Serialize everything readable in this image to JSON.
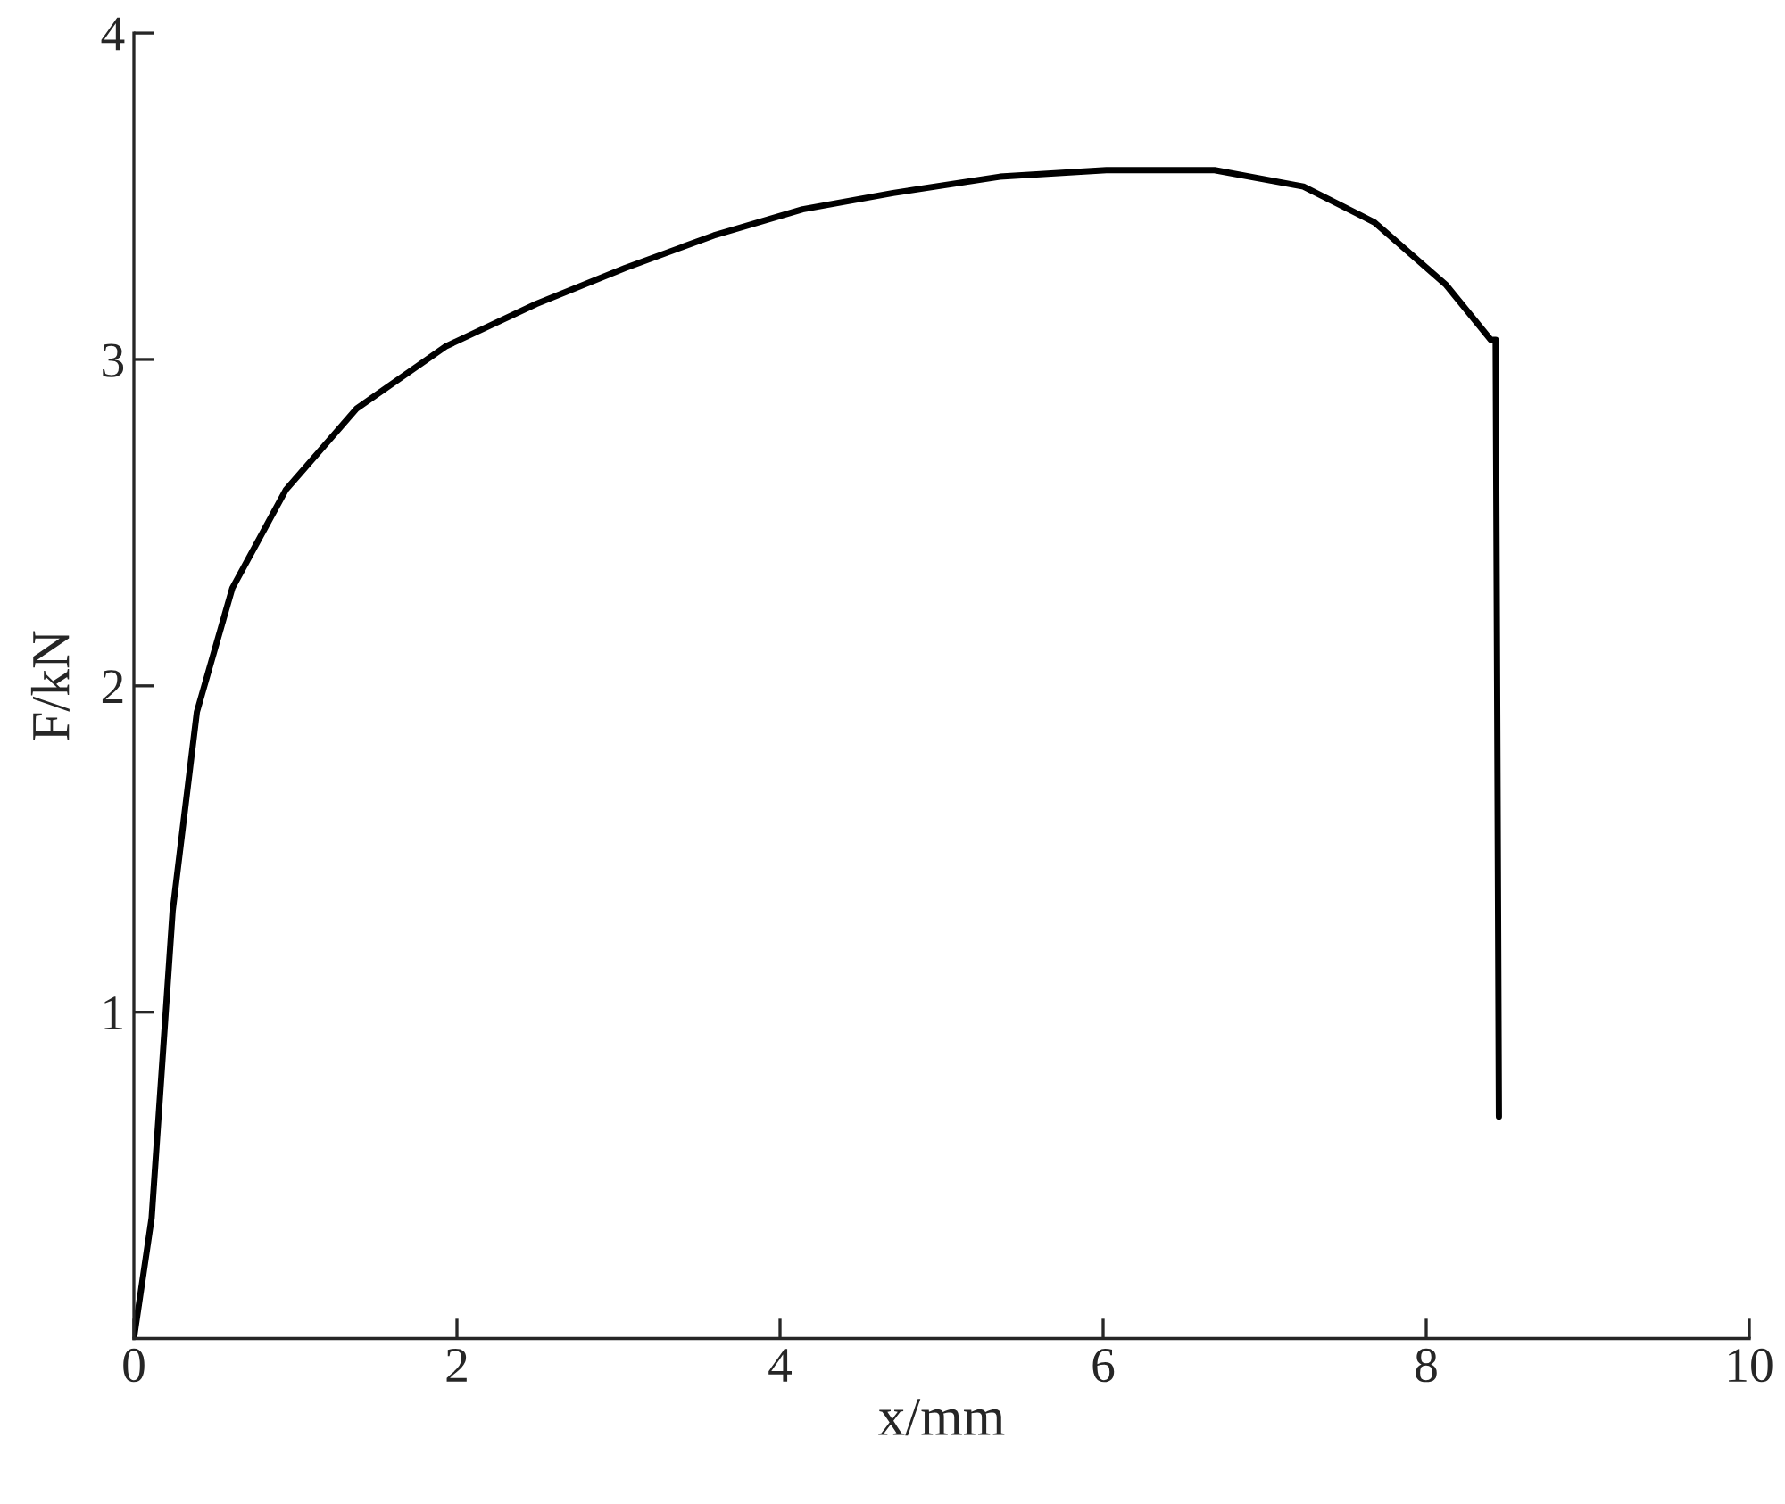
{
  "chart_data": {
    "type": "line",
    "xlabel": "x/mm",
    "ylabel": "F/kN",
    "xlim": [
      0,
      10
    ],
    "ylim": [
      0,
      4
    ],
    "xticks": [
      0,
      2,
      4,
      6,
      8,
      10
    ],
    "yticks": [
      1,
      2,
      3,
      4
    ],
    "grid": false,
    "marker": "none",
    "line_style": "solid",
    "series": [
      {
        "color": "#000000",
        "x": [
          0,
          0.11,
          0.24,
          0.39,
          0.61,
          0.94,
          1.38,
          1.93,
          2.49,
          3.04,
          3.59,
          4.14,
          4.7,
          5.36,
          6.02,
          6.69,
          7.24,
          7.68,
          8.12,
          8.4,
          8.43,
          8.45
        ],
        "values": [
          0,
          0.37,
          1.31,
          1.92,
          2.3,
          2.6,
          2.85,
          3.04,
          3.17,
          3.28,
          3.38,
          3.46,
          3.51,
          3.56,
          3.58,
          3.58,
          3.53,
          3.42,
          3.23,
          3.06,
          3.06,
          0.68
        ]
      }
    ]
  }
}
